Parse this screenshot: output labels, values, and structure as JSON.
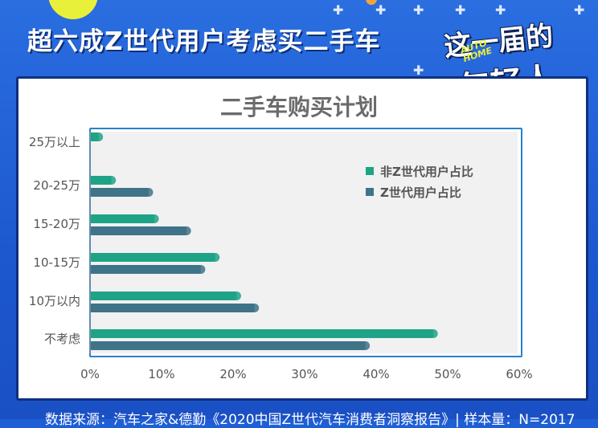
{
  "headline": "超六成Z世代用户考虑买二手车",
  "badge": {
    "line1": "这一届的",
    "line2": "年轻人",
    "logo_line1": "AUTO",
    "logo_line2": "HOME"
  },
  "footnote": "数据来源：汽车之家&德勤《2020中国Z世代汽车消费者洞察报告》| 样本量：N=2017",
  "colors": {
    "background": "#1f5fd6",
    "series_non_z": "#1fa386",
    "series_z": "#3e7388",
    "frame": "#2a7fd0"
  },
  "chart_data": {
    "type": "bar",
    "orientation": "horizontal",
    "title": "二手车购买计划",
    "categories": [
      "不考虑",
      "10万以内",
      "10-15万",
      "15-20万",
      "20-25万",
      "25万以上"
    ],
    "series": [
      {
        "name": "非Z世代用户占比",
        "values": [
          48,
          20.5,
          17.5,
          9,
          3,
          1.2
        ]
      },
      {
        "name": "Z世代用户占比",
        "values": [
          38.5,
          23,
          15.5,
          13.5,
          8.2,
          0
        ]
      }
    ],
    "x_ticks": [
      "0%",
      "10%",
      "20%",
      "30%",
      "40%",
      "50%",
      "60%"
    ],
    "xlim": [
      0,
      60
    ],
    "legend_position": "top-right",
    "grid": false
  }
}
